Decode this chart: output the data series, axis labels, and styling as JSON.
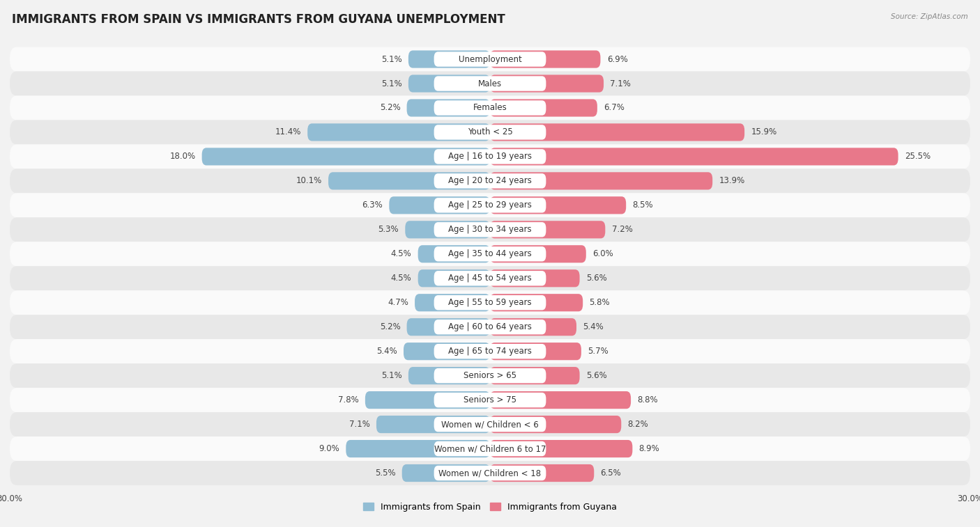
{
  "title": "IMMIGRANTS FROM SPAIN VS IMMIGRANTS FROM GUYANA UNEMPLOYMENT",
  "source": "Source: ZipAtlas.com",
  "categories": [
    "Unemployment",
    "Males",
    "Females",
    "Youth < 25",
    "Age | 16 to 19 years",
    "Age | 20 to 24 years",
    "Age | 25 to 29 years",
    "Age | 30 to 34 years",
    "Age | 35 to 44 years",
    "Age | 45 to 54 years",
    "Age | 55 to 59 years",
    "Age | 60 to 64 years",
    "Age | 65 to 74 years",
    "Seniors > 65",
    "Seniors > 75",
    "Women w/ Children < 6",
    "Women w/ Children 6 to 17",
    "Women w/ Children < 18"
  ],
  "spain_values": [
    5.1,
    5.1,
    5.2,
    11.4,
    18.0,
    10.1,
    6.3,
    5.3,
    4.5,
    4.5,
    4.7,
    5.2,
    5.4,
    5.1,
    7.8,
    7.1,
    9.0,
    5.5
  ],
  "guyana_values": [
    6.9,
    7.1,
    6.7,
    15.9,
    25.5,
    13.9,
    8.5,
    7.2,
    6.0,
    5.6,
    5.8,
    5.4,
    5.7,
    5.6,
    8.8,
    8.2,
    8.9,
    6.5
  ],
  "spain_color": "#92bdd4",
  "guyana_color": "#e8788a",
  "bg_color": "#f2f2f2",
  "row_bg_light": "#fafafa",
  "row_bg_dark": "#e8e8e8",
  "axis_max": 30.0,
  "label_fontsize": 8.5,
  "title_fontsize": 12,
  "legend_spain": "Immigrants from Spain",
  "legend_guyana": "Immigrants from Guyana"
}
